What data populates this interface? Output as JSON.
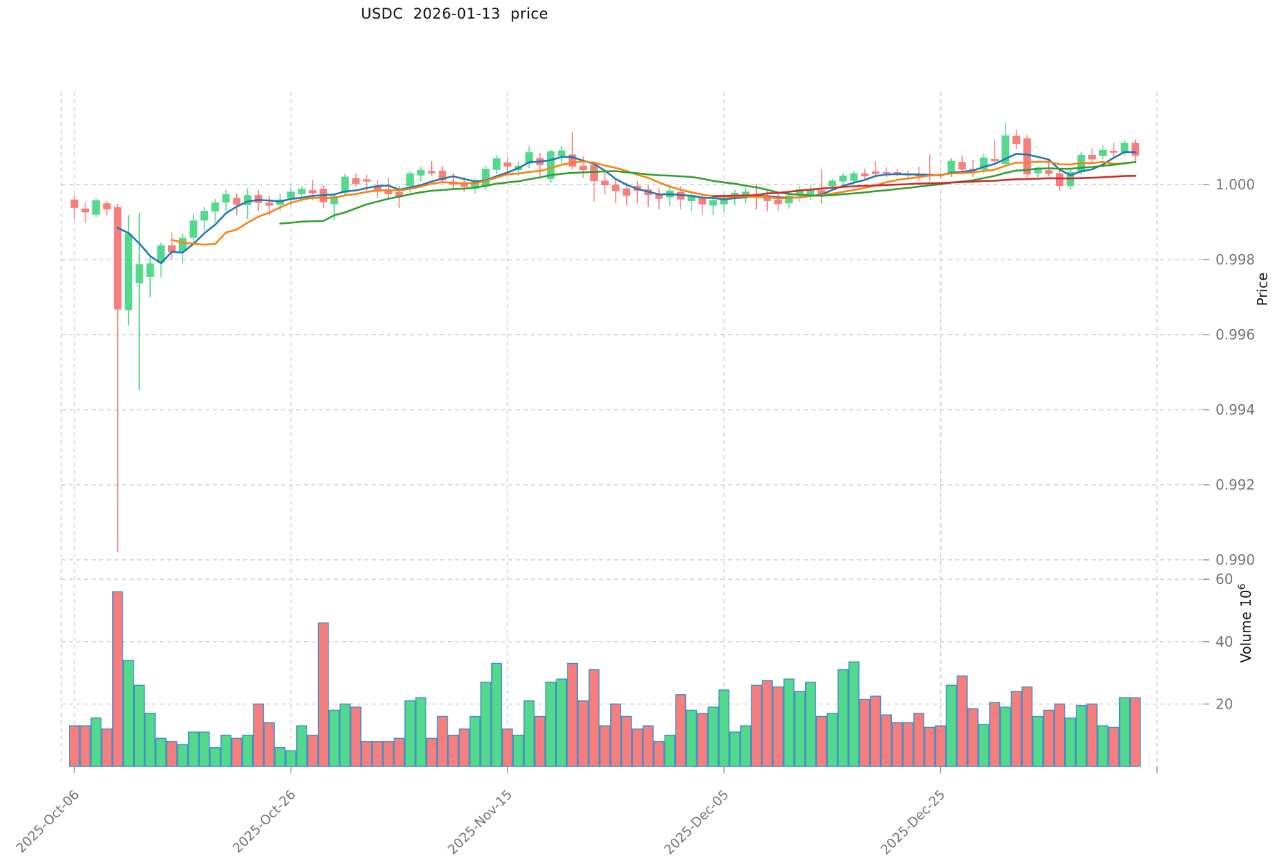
{
  "title": "USDC  2026-01-13  price",
  "chart_data": {
    "type": "candlestick",
    "title": "USDC  2026-01-13  price",
    "ylabel_right": "Price",
    "ylabel_volume": {
      "text": "Volume",
      "unit_base": "10",
      "unit_exp": "6"
    },
    "grid": true,
    "legend_position": "none",
    "price_axis_side": "right",
    "ylim_price": [
      0.9896,
      1.0021
    ],
    "ylim_volume": [
      0,
      64
    ],
    "price_ticks": [
      {
        "label": "1.000",
        "value": 1.0
      },
      {
        "label": "0.998",
        "value": 0.998
      },
      {
        "label": "0.996",
        "value": 0.996
      },
      {
        "label": "0.994",
        "value": 0.994
      },
      {
        "label": "0.992",
        "value": 0.992
      },
      {
        "label": "0.990",
        "value": 0.99
      }
    ],
    "volume_ticks": [
      {
        "label": "60",
        "value": 60
      },
      {
        "label": "40",
        "value": 40
      },
      {
        "label": "20",
        "value": 20
      }
    ],
    "x_ticks": [
      {
        "label": "2025-Oct-06",
        "index": 0
      },
      {
        "label": "2025-Oct-26",
        "index": 20
      },
      {
        "label": "2025-Nov-15",
        "index": 40
      },
      {
        "label": "2025-Dec-05",
        "index": 60
      },
      {
        "label": "2025-Dec-25",
        "index": 80
      },
      {
        "label": "",
        "index": 100
      }
    ],
    "ma": {
      "periods": [
        5,
        10,
        20,
        60
      ],
      "colors": [
        "#1f77b4",
        "#ff7f0e",
        "#2ca02c",
        "#d62728"
      ]
    },
    "colors": {
      "up": "#52d98c",
      "down": "#f87d7d",
      "volume_edge": "#4191c9",
      "grid": "#cfcfcf",
      "tick_label": "#757575",
      "axis_label": "#111111"
    },
    "dates": [
      "2025-10-06",
      "2025-10-07",
      "2025-10-08",
      "2025-10-09",
      "2025-10-10",
      "2025-10-11",
      "2025-10-12",
      "2025-10-13",
      "2025-10-14",
      "2025-10-15",
      "2025-10-16",
      "2025-10-17",
      "2025-10-18",
      "2025-10-19",
      "2025-10-20",
      "2025-10-21",
      "2025-10-22",
      "2025-10-23",
      "2025-10-24",
      "2025-10-25",
      "2025-10-26",
      "2025-10-27",
      "2025-10-28",
      "2025-10-29",
      "2025-10-30",
      "2025-10-31",
      "2025-11-01",
      "2025-11-02",
      "2025-11-03",
      "2025-11-04",
      "2025-11-05",
      "2025-11-06",
      "2025-11-07",
      "2025-11-08",
      "2025-11-09",
      "2025-11-10",
      "2025-11-11",
      "2025-11-12",
      "2025-11-13",
      "2025-11-14",
      "2025-11-15",
      "2025-11-16",
      "2025-11-17",
      "2025-11-18",
      "2025-11-19",
      "2025-11-20",
      "2025-11-21",
      "2025-11-22",
      "2025-11-23",
      "2025-11-24",
      "2025-11-25",
      "2025-11-26",
      "2025-11-27",
      "2025-11-28",
      "2025-11-29",
      "2025-11-30",
      "2025-12-01",
      "2025-12-02",
      "2025-12-03",
      "2025-12-04",
      "2025-12-05",
      "2025-12-06",
      "2025-12-07",
      "2025-12-08",
      "2025-12-09",
      "2025-12-10",
      "2025-12-11",
      "2025-12-12",
      "2025-12-13",
      "2025-12-14",
      "2025-12-15",
      "2025-12-16",
      "2025-12-17",
      "2025-12-18",
      "2025-12-19",
      "2025-12-20",
      "2025-12-21",
      "2025-12-22",
      "2025-12-23",
      "2025-12-24",
      "2025-12-25",
      "2025-12-26",
      "2025-12-27",
      "2025-12-28",
      "2025-12-29",
      "2025-12-30",
      "2025-12-31",
      "2026-01-01",
      "2026-01-02",
      "2026-01-03",
      "2026-01-04",
      "2026-01-05",
      "2026-01-06",
      "2026-01-07",
      "2026-01-08",
      "2026-01-09",
      "2026-01-10",
      "2026-01-11",
      "2026-01-12"
    ],
    "ohlc": [
      [
        0.9996,
        0.99972,
        0.99908,
        0.99938
      ],
      [
        0.99936,
        0.99952,
        0.99898,
        0.99926
      ],
      [
        0.9992,
        0.99964,
        0.99912,
        0.99958
      ],
      [
        0.9995,
        0.99956,
        0.99918,
        0.99934
      ],
      [
        0.9994,
        0.99948,
        0.9902,
        0.99667
      ],
      [
        0.99666,
        0.99919,
        0.99625,
        0.99869
      ],
      [
        0.99737,
        0.99925,
        0.99452,
        0.99788
      ],
      [
        0.99754,
        0.99806,
        0.997,
        0.9979
      ],
      [
        0.99792,
        0.99845,
        0.99752,
        0.99838
      ],
      [
        0.99838,
        0.99872,
        0.998,
        0.9982
      ],
      [
        0.99822,
        0.9987,
        0.99788,
        0.99858
      ],
      [
        0.99858,
        0.99922,
        0.9984,
        0.99904
      ],
      [
        0.99904,
        0.9994,
        0.99878,
        0.9993
      ],
      [
        0.99928,
        0.99962,
        0.999,
        0.99952
      ],
      [
        0.99952,
        0.99986,
        0.9993,
        0.99974
      ],
      [
        0.99964,
        0.99976,
        0.99918,
        0.99946
      ],
      [
        0.99945,
        0.9999,
        0.99908,
        0.99972
      ],
      [
        0.99972,
        0.99986,
        0.9993,
        0.99951
      ],
      [
        0.99952,
        0.9997,
        0.99918,
        0.99944
      ],
      [
        0.99946,
        0.99976,
        0.99928,
        0.9996
      ],
      [
        0.99964,
        0.99992,
        0.99944,
        0.99981
      ],
      [
        0.99974,
        0.99996,
        0.99954,
        0.99989
      ],
      [
        0.99985,
        1.00012,
        0.99958,
        0.99976
      ],
      [
        0.99989,
        0.99998,
        0.99938,
        0.99953
      ],
      [
        0.99948,
        0.99976,
        0.99904,
        0.99969
      ],
      [
        0.99978,
        1.00028,
        0.99968,
        1.00021
      ],
      [
        1.00017,
        1.0003,
        0.99994,
        1.00002
      ],
      [
        1.00014,
        1.00026,
        0.99984,
        1.00008
      ],
      [
        0.99996,
        1.00012,
        0.99964,
        0.99981
      ],
      [
        0.99985,
        1.00018,
        0.99958,
        0.99974
      ],
      [
        0.9998,
        0.99996,
        0.99938,
        0.99968
      ],
      [
        0.99996,
        1.00036,
        0.9998,
        1.0003
      ],
      [
        1.00024,
        1.00048,
        1.00008,
        1.00039
      ],
      [
        1.00036,
        1.00062,
        1.00024,
        1.0003
      ],
      [
        1.00037,
        1.00048,
        1.00004,
        1.00011
      ],
      [
        1.00008,
        1.0003,
        0.99988,
        1.0
      ],
      [
        1.00002,
        1.0002,
        0.9998,
        0.99994
      ],
      [
        0.99989,
        1.00016,
        0.99976,
        1.00007
      ],
      [
        0.99996,
        1.0005,
        0.99984,
        1.00042
      ],
      [
        1.00039,
        1.00078,
        1.00028,
        1.0007
      ],
      [
        1.00059,
        1.00072,
        1.00034,
        1.00048
      ],
      [
        1.00038,
        1.00062,
        1.00024,
        1.0005
      ],
      [
        1.00056,
        1.00102,
        1.00044,
        1.00086
      ],
      [
        1.0007,
        1.00084,
        1.0002,
        1.00052
      ],
      [
        1.00015,
        1.00092,
        1.00004,
        1.00089
      ],
      [
        1.00076,
        1.00102,
        1.00058,
        1.00091
      ],
      [
        1.0008,
        1.00139,
        1.0004,
        1.00048
      ],
      [
        1.0005,
        1.00076,
        1.00018,
        1.00038
      ],
      [
        1.00052,
        1.00062,
        0.99954,
        1.00009
      ],
      [
        1.0001,
        1.00036,
        0.99974,
        0.99998
      ],
      [
        1.0,
        1.00014,
        0.9995,
        0.99982
      ],
      [
        0.9999,
        1.00006,
        0.99944,
        0.9997
      ],
      [
        0.99996,
        1.0001,
        0.9995,
        0.99983
      ],
      [
        0.99987,
        0.99998,
        0.9994,
        0.99972
      ],
      [
        0.99976,
        0.9999,
        0.99934,
        0.99962
      ],
      [
        0.99966,
        0.99994,
        0.99944,
        0.99984
      ],
      [
        0.9998,
        0.99996,
        0.99934,
        0.9996
      ],
      [
        0.99956,
        0.99982,
        0.9993,
        0.99972
      ],
      [
        0.99963,
        0.99976,
        0.9992,
        0.99947
      ],
      [
        0.99944,
        0.99966,
        0.99918,
        0.99959
      ],
      [
        0.99947,
        0.99976,
        0.99928,
        0.99963
      ],
      [
        0.99963,
        0.99986,
        0.99944,
        0.99978
      ],
      [
        0.99966,
        0.99992,
        0.9995,
        0.99981
      ],
      [
        0.99975,
        1.00002,
        0.99934,
        0.99968
      ],
      [
        0.9997,
        0.99986,
        0.99928,
        0.99956
      ],
      [
        0.9996,
        0.99976,
        0.9993,
        0.99948
      ],
      [
        0.9995,
        0.99982,
        0.99936,
        0.9997
      ],
      [
        0.99972,
        0.99996,
        0.99954,
        0.99987
      ],
      [
        0.99974,
        0.99998,
        0.99958,
        0.99986
      ],
      [
        0.99985,
        1.0004,
        0.99948,
        0.99975
      ],
      [
        0.99996,
        1.00016,
        0.99984,
        1.0001
      ],
      [
        1.00008,
        1.0003,
        0.99996,
        1.00024
      ],
      [
        1.0001,
        1.00036,
        1.0,
        1.0003
      ],
      [
        1.0003,
        1.00042,
        1.00014,
        1.00022
      ],
      [
        1.00035,
        1.00062,
        1.0002,
        1.00028
      ],
      [
        1.00033,
        1.00046,
        1.0002,
        1.0003
      ],
      [
        1.00033,
        1.00042,
        1.00022,
        1.00029
      ],
      [
        1.0003,
        1.00038,
        1.00014,
        1.00026
      ],
      [
        1.00028,
        1.00048,
        1.0001,
        1.00022
      ],
      [
        1.00028,
        1.0008,
        1.0001,
        1.00022
      ],
      [
        1.00026,
        1.0003,
        1.00018,
        1.00024
      ],
      [
        1.00028,
        1.0007,
        1.0002,
        1.00063
      ],
      [
        1.0006,
        1.00076,
        1.0003,
        1.0004
      ],
      [
        1.00042,
        1.00066,
        1.0002,
        1.00037
      ],
      [
        1.0004,
        1.00082,
        1.0003,
        1.00072
      ],
      [
        1.00068,
        1.0012,
        1.00054,
        1.00062
      ],
      [
        1.00055,
        1.00165,
        1.00048,
        1.00131
      ],
      [
        1.0013,
        1.00146,
        1.00094,
        1.00108
      ],
      [
        1.00123,
        1.00132,
        1.00018,
        1.00027
      ],
      [
        1.0003,
        1.00048,
        1.0002,
        1.0004
      ],
      [
        1.00038,
        1.00066,
        1.00022,
        1.00028
      ],
      [
        1.0003,
        1.00038,
        0.99984,
        0.99996
      ],
      [
        0.99996,
        1.00042,
        0.99988,
        1.00033
      ],
      [
        1.00033,
        1.00086,
        1.00026,
        1.00079
      ],
      [
        1.00079,
        1.00098,
        1.00058,
        1.00067
      ],
      [
        1.00076,
        1.00106,
        1.00068,
        1.00092
      ],
      [
        1.0009,
        1.00112,
        1.00074,
        1.00085
      ],
      [
        1.00086,
        1.00118,
        1.00078,
        1.00111
      ],
      [
        1.00111,
        1.0012,
        1.00056,
        1.00077
      ]
    ],
    "volume": [
      13,
      13,
      15.5,
      12,
      56,
      34,
      26,
      17,
      9,
      8,
      7,
      11,
      11,
      6,
      10,
      9,
      10,
      20,
      14,
      6,
      5,
      13,
      10,
      46,
      18,
      20,
      19,
      8,
      8,
      8,
      9,
      21,
      22,
      9,
      16,
      10,
      12,
      16,
      27,
      33,
      12,
      10,
      21,
      16,
      27,
      28,
      33,
      21,
      31,
      13,
      20,
      16,
      12,
      13,
      8,
      10,
      23,
      18,
      17,
      19,
      24.5,
      11,
      13,
      26,
      27.5,
      25.5,
      28,
      24,
      27,
      16,
      17,
      31,
      33.5,
      21.5,
      22.5,
      16.5,
      14,
      14,
      17,
      12.5,
      13,
      26,
      29,
      18.5,
      13.5,
      20.5,
      19,
      24,
      25.5,
      16,
      18,
      20,
      15.5,
      19.5,
      20,
      13,
      12.5,
      22,
      22
    ]
  }
}
